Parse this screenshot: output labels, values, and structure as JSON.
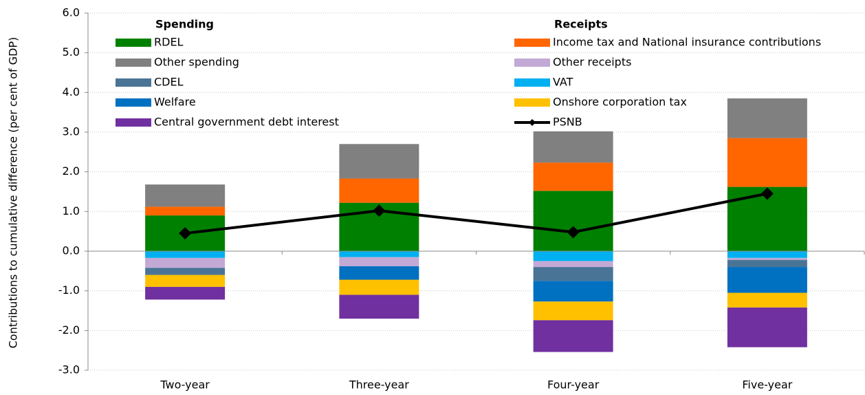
{
  "chart_data": {
    "type": "stacked_bar_line",
    "y_axis_label": "Contributions to cumulative difference (per cent of GDP)",
    "categories": [
      "Two-year",
      "Three-year",
      "Four-year",
      "Five-year"
    ],
    "ylim": [
      -3,
      6
    ],
    "yticks": [
      {
        "value": -3,
        "label": "-3.0"
      },
      {
        "value": -2,
        "label": "-2.0"
      },
      {
        "value": -1,
        "label": "-1.0"
      },
      {
        "value": 0,
        "label": "0.0"
      },
      {
        "value": 1,
        "label": "1.0"
      },
      {
        "value": 2,
        "label": "2.0"
      },
      {
        "value": 3,
        "label": "3.0"
      },
      {
        "value": 4,
        "label": "4.0"
      },
      {
        "value": 5,
        "label": "5.0"
      },
      {
        "value": 6,
        "label": "6.0"
      }
    ],
    "grid": true,
    "legend_titles": [
      "Spending",
      "Receipts"
    ],
    "series": [
      {
        "name": "RDEL",
        "color": "#008000",
        "values": [
          0.9,
          1.22,
          1.52,
          1.62
        ]
      },
      {
        "name": "Income tax and National insurance contributions",
        "color": "#ff6600",
        "values": [
          0.22,
          0.61,
          0.71,
          1.23
        ]
      },
      {
        "name": "Other spending",
        "color": "#808080",
        "values": [
          0.56,
          0.87,
          0.79,
          1.0
        ]
      },
      {
        "name": "VAT",
        "color": "#00b0f0",
        "values": [
          -0.17,
          -0.15,
          -0.25,
          -0.17
        ]
      },
      {
        "name": "Other receipts",
        "color": "#c3a9d6",
        "values": [
          -0.25,
          -0.23,
          -0.15,
          -0.05
        ]
      },
      {
        "name": "CDEL",
        "color": "#4a7496",
        "values": [
          -0.18,
          0,
          -0.35,
          -0.18
        ]
      },
      {
        "name": "Welfare",
        "color": "#0070c0",
        "values": [
          0,
          -0.34,
          -0.52,
          -0.65
        ]
      },
      {
        "name": "Onshore corporation tax",
        "color": "#ffc000",
        "values": [
          -0.3,
          -0.38,
          -0.47,
          -0.37
        ]
      },
      {
        "name": "Central government debt interest",
        "color": "#7030a0",
        "values": [
          -0.32,
          -0.6,
          -0.8,
          -1.0
        ]
      },
      {
        "name": "PSNB",
        "color": "#000000",
        "type": "line",
        "values": [
          0.45,
          1.02,
          0.48,
          1.45
        ]
      }
    ]
  }
}
